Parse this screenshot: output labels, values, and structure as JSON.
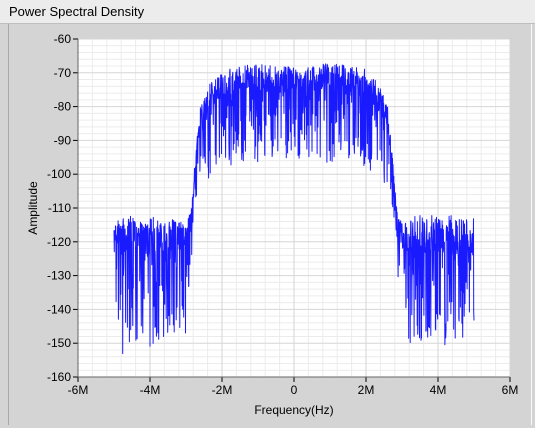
{
  "window": {
    "title": "Power Spectral Density"
  },
  "chart_data": {
    "type": "line",
    "xlabel": "Frequency(Hz)",
    "ylabel": "Amplitude",
    "xlim": [
      -6000000,
      6000000
    ],
    "ylim": [
      -160,
      -60
    ],
    "x_ticks": [
      {
        "value": -6000000,
        "label": "-6M"
      },
      {
        "value": -4000000,
        "label": "-4M"
      },
      {
        "value": -2000000,
        "label": "-2M"
      },
      {
        "value": 0,
        "label": "0"
      },
      {
        "value": 2000000,
        "label": "2M"
      },
      {
        "value": 4000000,
        "label": "4M"
      },
      {
        "value": 6000000,
        "label": "6M"
      }
    ],
    "y_ticks": [
      {
        "value": -60,
        "label": "-60"
      },
      {
        "value": -70,
        "label": "-70"
      },
      {
        "value": -80,
        "label": "-80"
      },
      {
        "value": -90,
        "label": "-90"
      },
      {
        "value": -100,
        "label": "-100"
      },
      {
        "value": -110,
        "label": "-110"
      },
      {
        "value": -120,
        "label": "-120"
      },
      {
        "value": -130,
        "label": "-130"
      },
      {
        "value": -140,
        "label": "-140"
      },
      {
        "value": -150,
        "label": "-150"
      },
      {
        "value": -160,
        "label": "-160"
      }
    ],
    "grid": true,
    "series": [
      {
        "color": "#1a1aff",
        "x": [
          -5000000,
          -4700000,
          -4400000,
          -4100000,
          -3800000,
          -3500000,
          -3200000,
          -2950000,
          -2850000,
          -2750000,
          -2600000,
          -2400000,
          -2000000,
          -1500000,
          -1000000,
          -500000,
          0,
          500000,
          1000000,
          1500000,
          2000000,
          2400000,
          2600000,
          2750000,
          2850000,
          2950000,
          3200000,
          3500000,
          3800000,
          4100000,
          4400000,
          4700000,
          5000000
        ],
        "y_max": [
          -113,
          -113,
          -112,
          -112,
          -113,
          -112,
          -113,
          -113,
          -110,
          -95,
          -80,
          -74,
          -69,
          -68,
          -67,
          -68,
          -68,
          -68,
          -67,
          -68,
          -69,
          -74,
          -80,
          -95,
          -110,
          -113,
          -113,
          -112,
          -112,
          -113,
          -112,
          -113,
          -113
        ],
        "y_typical_min": [
          -142,
          -145,
          -143,
          -146,
          -143,
          -144,
          -142,
          -140,
          -118,
          -108,
          -100,
          -96,
          -93,
          -91,
          -90,
          -91,
          -90,
          -91,
          -90,
          -91,
          -93,
          -96,
          -100,
          -108,
          -118,
          -140,
          -142,
          -144,
          -145,
          -143,
          -146,
          -144,
          -142
        ],
        "y_deep_min": [
          -148,
          -155,
          -150,
          -152,
          -151,
          -149,
          -150,
          -146,
          -125,
          -112,
          -106,
          -102,
          -99,
          -96,
          -97,
          -95,
          -96,
          -95,
          -97,
          -96,
          -99,
          -102,
          -106,
          -112,
          -125,
          -146,
          -150,
          -149,
          -151,
          -152,
          -153,
          -150,
          -148
        ]
      }
    ]
  }
}
